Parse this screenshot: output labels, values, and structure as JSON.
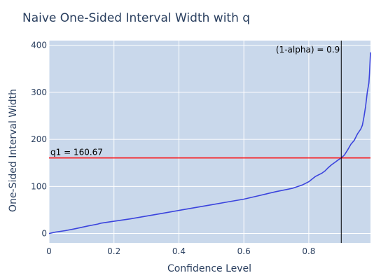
{
  "chart_data": {
    "type": "line",
    "title": "Naive One-Sided Interval Width with q",
    "xlabel": "Confidence Level",
    "ylabel": "One-Sided Interval Width",
    "xlim": [
      0,
      0.99
    ],
    "ylim": [
      -20,
      410
    ],
    "x_ticks": [
      0,
      0.2,
      0.4,
      0.6,
      0.8
    ],
    "x_tick_labels": [
      "0",
      "0.2",
      "0.4",
      "0.6",
      "0.8"
    ],
    "y_ticks": [
      0,
      100,
      200,
      300,
      400
    ],
    "y_tick_labels": [
      "0",
      "100",
      "200",
      "300",
      "400"
    ],
    "grid": true,
    "series": [
      {
        "x": [
          0,
          0.02,
          0.05,
          0.08,
          0.1,
          0.12,
          0.15,
          0.16,
          0.2,
          0.25,
          0.3,
          0.35,
          0.4,
          0.45,
          0.5,
          0.55,
          0.6,
          0.65,
          0.7,
          0.75,
          0.78,
          0.8,
          0.82,
          0.84,
          0.85,
          0.86,
          0.87,
          0.88,
          0.89,
          0.9,
          0.91,
          0.92,
          0.93,
          0.94,
          0.95,
          0.96,
          0.965,
          0.97,
          0.975,
          0.98,
          0.985,
          0.987,
          0.99
        ],
        "y": [
          0,
          3,
          6,
          10,
          13,
          16,
          20,
          22,
          26,
          31,
          37,
          43,
          49,
          55,
          61,
          67,
          73,
          81,
          89,
          96,
          103,
          110,
          121,
          128,
          133,
          140,
          146,
          151,
          156,
          160.67,
          167,
          178,
          190,
          198,
          212,
          222,
          230,
          248,
          270,
          300,
          320,
          340,
          385
        ]
      }
    ],
    "reference_lines": [
      {
        "orientation": "horizontal",
        "value": 160.67,
        "label": "q1 = 160.67",
        "color": "#ff0000"
      },
      {
        "orientation": "vertical",
        "value": 0.9,
        "label": "(1-alpha) = 0.9",
        "color": "#000000"
      }
    ],
    "colors": {
      "line": "#3b44dd",
      "plot_bg": "#c9d8eb",
      "grid": "#ffffff"
    }
  }
}
